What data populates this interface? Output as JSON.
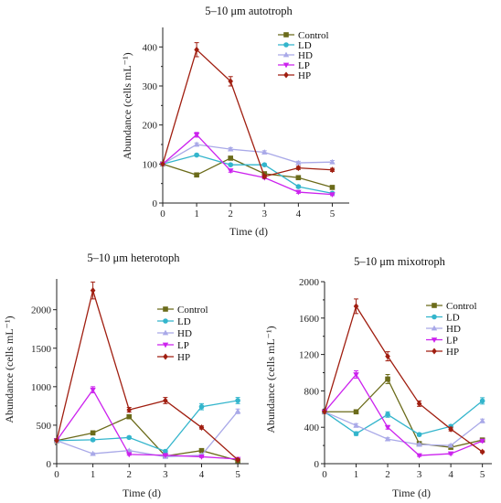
{
  "chart_data": [
    {
      "type": "line",
      "title": "5–10 μm autotroph",
      "xlabel": "Time (d)",
      "ylabel": "Abundance (cells mL⁻¹)",
      "xlim": [
        0,
        5.5
      ],
      "ylim": [
        0,
        450
      ],
      "x_ticks": [
        0,
        1,
        2,
        3,
        4,
        5
      ],
      "y_ticks": [
        0,
        100,
        200,
        300,
        400
      ],
      "x": [
        0,
        1,
        2,
        3,
        4,
        5
      ],
      "series": [
        {
          "name": "Control",
          "color": "#6b6b1a",
          "marker": "square",
          "values": [
            100,
            72,
            115,
            75,
            65,
            40
          ],
          "errors": [
            0,
            3,
            3,
            3,
            3,
            3
          ]
        },
        {
          "name": "LD",
          "color": "#33b5cc",
          "marker": "circle",
          "values": [
            100,
            123,
            98,
            98,
            42,
            25
          ],
          "errors": [
            0,
            3,
            3,
            3,
            3,
            3
          ]
        },
        {
          "name": "HD",
          "color": "#a9a9e8",
          "marker": "triangle-up",
          "values": [
            100,
            150,
            138,
            130,
            103,
            105
          ],
          "errors": [
            0,
            4,
            4,
            4,
            4,
            4
          ]
        },
        {
          "name": "LP",
          "color": "#cc22ee",
          "marker": "triangle-down",
          "values": [
            100,
            175,
            83,
            65,
            28,
            22
          ],
          "errors": [
            0,
            6,
            4,
            3,
            3,
            3
          ]
        },
        {
          "name": "HP",
          "color": "#a01e10",
          "marker": "diamond",
          "values": [
            100,
            393,
            312,
            68,
            90,
            85
          ],
          "errors": [
            0,
            18,
            12,
            4,
            4,
            4
          ]
        }
      ]
    },
    {
      "type": "line",
      "title": "5–10 μm heterotoph",
      "xlabel": "Time (d)",
      "ylabel": "Abundance (cells mL⁻¹)",
      "xlim": [
        0,
        5.3
      ],
      "ylim": [
        0,
        2400
      ],
      "x_ticks": [
        0,
        1,
        2,
        3,
        4,
        5
      ],
      "y_ticks": [
        0,
        500,
        1000,
        1500,
        2000
      ],
      "x": [
        0,
        1,
        2,
        3,
        4,
        5
      ],
      "series": [
        {
          "name": "Control",
          "color": "#6b6b1a",
          "marker": "square",
          "values": [
            300,
            400,
            610,
            100,
            170,
            40
          ],
          "errors": [
            0,
            15,
            20,
            10,
            10,
            8
          ]
        },
        {
          "name": "LD",
          "color": "#33b5cc",
          "marker": "circle",
          "values": [
            300,
            310,
            340,
            160,
            740,
            820
          ],
          "errors": [
            0,
            15,
            15,
            15,
            40,
            40
          ]
        },
        {
          "name": "HD",
          "color": "#a9a9e8",
          "marker": "triangle-up",
          "values": [
            300,
            130,
            170,
            90,
            110,
            680
          ],
          "errors": [
            0,
            10,
            10,
            10,
            10,
            30
          ]
        },
        {
          "name": "LP",
          "color": "#cc22ee",
          "marker": "triangle-down",
          "values": [
            300,
            960,
            120,
            110,
            90,
            60
          ],
          "errors": [
            0,
            40,
            10,
            10,
            10,
            8
          ]
        },
        {
          "name": "HP",
          "color": "#a01e10",
          "marker": "diamond",
          "values": [
            300,
            2250,
            700,
            820,
            470,
            50
          ],
          "errors": [
            0,
            110,
            30,
            40,
            20,
            8
          ]
        }
      ]
    },
    {
      "type": "line",
      "title": "5–10 μm mixotroph",
      "xlabel": "Time (d)",
      "ylabel": "Abundance (cells mL⁻¹)",
      "xlim": [
        0,
        5.3
      ],
      "ylim": [
        0,
        2000
      ],
      "x_ticks": [
        0,
        1,
        2,
        3,
        4,
        5
      ],
      "y_ticks": [
        0,
        400,
        800,
        1200,
        1600,
        2000
      ],
      "x": [
        0,
        1,
        2,
        3,
        4,
        5
      ],
      "series": [
        {
          "name": "Control",
          "color": "#6b6b1a",
          "marker": "square",
          "values": [
            570,
            570,
            930,
            220,
            180,
            260
          ],
          "errors": [
            0,
            20,
            50,
            15,
            15,
            15
          ]
        },
        {
          "name": "LD",
          "color": "#33b5cc",
          "marker": "circle",
          "values": [
            570,
            330,
            540,
            320,
            410,
            690
          ],
          "errors": [
            0,
            20,
            30,
            15,
            15,
            35
          ]
        },
        {
          "name": "HD",
          "color": "#a9a9e8",
          "marker": "triangle-up",
          "values": [
            570,
            420,
            270,
            210,
            200,
            470
          ],
          "errors": [
            0,
            20,
            15,
            12,
            12,
            20
          ]
        },
        {
          "name": "LP",
          "color": "#cc22ee",
          "marker": "triangle-down",
          "values": [
            570,
            980,
            400,
            90,
            110,
            250
          ],
          "errors": [
            0,
            40,
            20,
            10,
            10,
            15
          ]
        },
        {
          "name": "HP",
          "color": "#a01e10",
          "marker": "diamond",
          "values": [
            570,
            1730,
            1180,
            660,
            380,
            130
          ],
          "errors": [
            0,
            80,
            50,
            30,
            20,
            10
          ]
        }
      ]
    }
  ]
}
